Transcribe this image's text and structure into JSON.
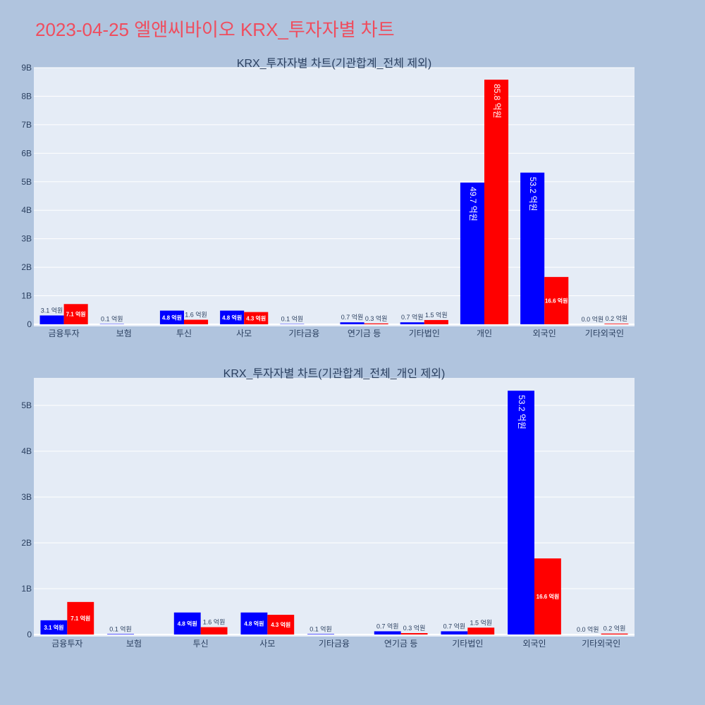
{
  "page_title": "2023-04-25 엘앤씨바이오 KRX_투자자별 차트",
  "colors": {
    "background": "#b0c4de",
    "plot_bg": "#e5ecf6",
    "title": "#ef4d5e",
    "series_1": "#0000ff",
    "series_2": "#ff0000"
  },
  "chart_data": [
    {
      "type": "bar",
      "title": "KRX_투자자별 차트(기관합계_전체 제외)",
      "categories": [
        "금융투자",
        "보험",
        "투신",
        "사모",
        "기타금융",
        "연기금 등",
        "기타법인",
        "개인",
        "외국인",
        "기타외국인"
      ],
      "series": [
        {
          "values": [
            310000000,
            10000000,
            480000000,
            480000000,
            10000000,
            70000000,
            70000000,
            4970000000,
            5320000000,
            0
          ],
          "labels": [
            "3.1 억원",
            "0.1 억원",
            "4.8 억원",
            "4.8 억원",
            "0.1 억원",
            "0.7 억원",
            "0.7 억원",
            "49.7 억원",
            "53.2 억원",
            "0.0 억원"
          ]
        },
        {
          "values": [
            710000000,
            0,
            160000000,
            430000000,
            0,
            30000000,
            150000000,
            8580000000,
            1660000000,
            20000000
          ],
          "labels": [
            "7.1 억원",
            "",
            "1.6 억원",
            "4.3 억원",
            "",
            "0.3 억원",
            "1.5 억원",
            "85.8 억원",
            "16.6 억원",
            "0.2 억원"
          ]
        }
      ],
      "y_ticks": [
        "0",
        "1B",
        "2B",
        "3B",
        "4B",
        "5B",
        "6B",
        "7B",
        "8B",
        "9B"
      ],
      "ylim": [
        0,
        9000000000
      ],
      "grid": true,
      "legend": "none"
    },
    {
      "type": "bar",
      "title": "KRX_투자자별 차트(기관합계_전체_개인 제외)",
      "categories": [
        "금융투자",
        "보험",
        "투신",
        "사모",
        "기타금융",
        "연기금 등",
        "기타법인",
        "외국인",
        "기타외국인"
      ],
      "series": [
        {
          "values": [
            310000000,
            10000000,
            480000000,
            480000000,
            10000000,
            70000000,
            70000000,
            5320000000,
            0
          ],
          "labels": [
            "3.1 억원",
            "0.1 억원",
            "4.8 억원",
            "4.8 억원",
            "0.1 억원",
            "0.7 억원",
            "0.7 억원",
            "53.2 억원",
            "0.0 억원"
          ]
        },
        {
          "values": [
            710000000,
            0,
            160000000,
            430000000,
            0,
            30000000,
            150000000,
            1660000000,
            20000000
          ],
          "labels": [
            "7.1 억원",
            "",
            "1.6 억원",
            "4.3 억원",
            "",
            "0.3 억원",
            "1.5 억원",
            "16.6 억원",
            "0.2 억원"
          ]
        }
      ],
      "y_ticks": [
        "0",
        "1B",
        "2B",
        "3B",
        "4B",
        "5B"
      ],
      "ylim": [
        0,
        5600000000
      ],
      "grid": true,
      "legend": "none"
    }
  ]
}
